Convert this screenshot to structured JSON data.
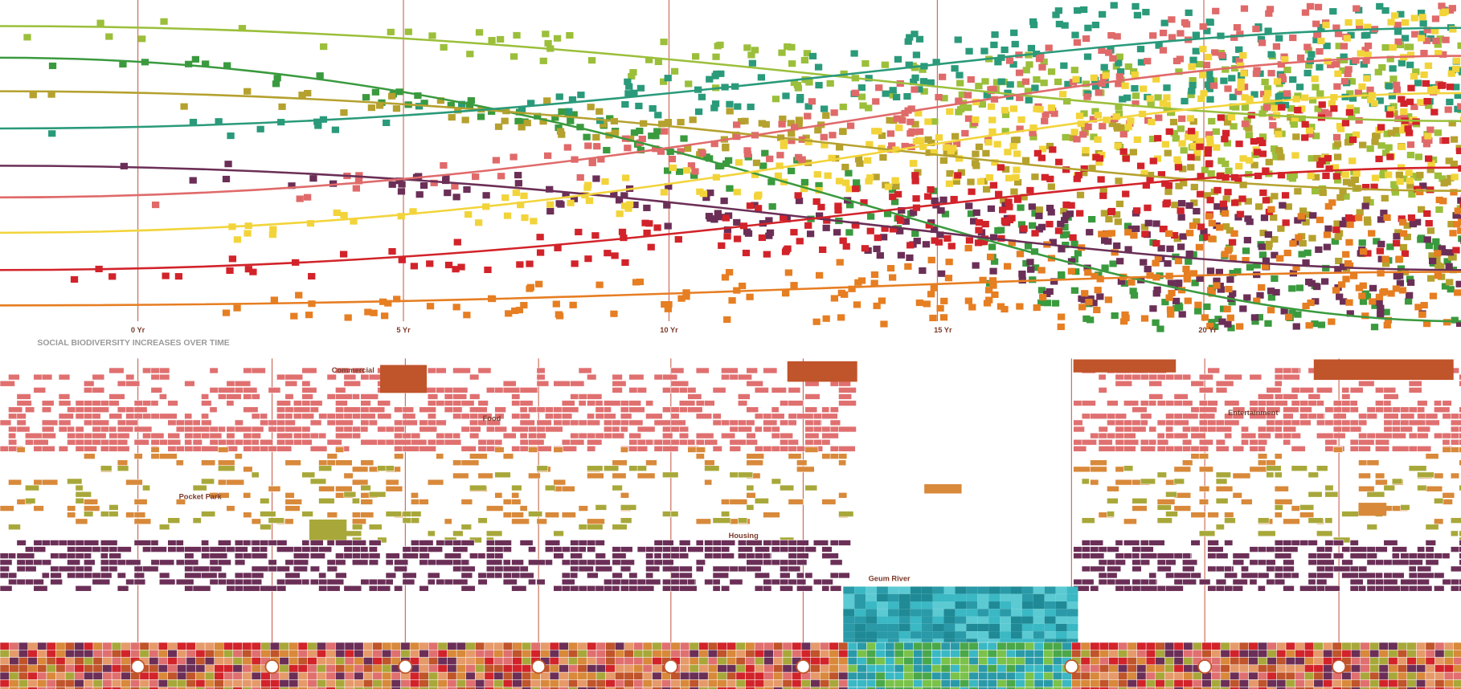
{
  "timeline": {
    "ticks": [
      "0 Yr",
      "5 Yr",
      "10 Yr",
      "15 Yr",
      "20 Yr"
    ],
    "title": "SOCIAL BIODIVERSITY INCREASES OVER TIME"
  },
  "labels": {
    "commercial": "Commercial",
    "food": "Food",
    "pocket_park": "Pocket Park",
    "housing": "Housing",
    "river": "Geum River",
    "entertainment": "Entertainment"
  }
}
